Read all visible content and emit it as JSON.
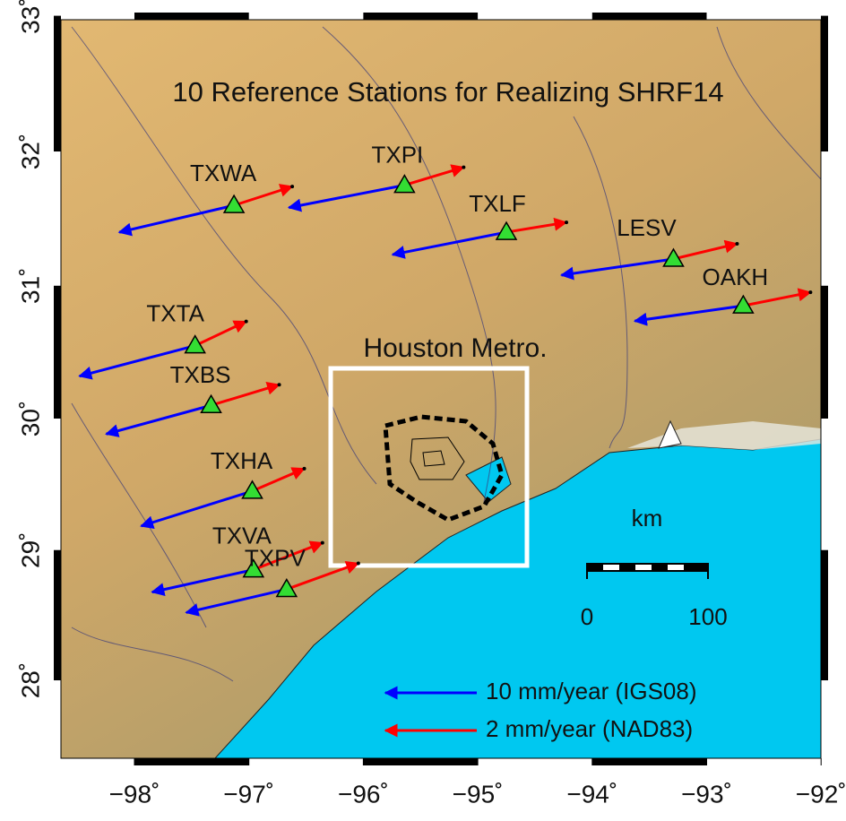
{
  "title": "10 Reference Stations for Realizing SHRF14",
  "stations": [
    {
      "name": "TXWA",
      "lon": -97.13,
      "lat": 31.6
    },
    {
      "name": "TXPI",
      "lon": -95.64,
      "lat": 31.75
    },
    {
      "name": "TXLF",
      "lon": -94.75,
      "lat": 31.4
    },
    {
      "name": "LESV",
      "lon": -93.29,
      "lat": 31.2
    },
    {
      "name": "OAKH",
      "lon": -92.68,
      "lat": 30.85
    },
    {
      "name": "TXTA",
      "lon": -97.47,
      "lat": 30.55
    },
    {
      "name": "TXBS",
      "lon": -97.33,
      "lat": 30.1
    },
    {
      "name": "TXHA",
      "lon": -96.97,
      "lat": 29.45
    },
    {
      "name": "TXVA",
      "lon": -96.96,
      "lat": 28.85
    },
    {
      "name": "TXPV",
      "lon": -96.67,
      "lat": 28.7
    }
  ],
  "box_label": "Houston Metro.",
  "scale": {
    "unit": "km",
    "labels": [
      "0",
      "100"
    ]
  },
  "legend": [
    {
      "label": "10 mm/year (IGS08)",
      "color": "#0000ff"
    },
    {
      "label": "2 mm/year (NAD83)",
      "color": "#ff0000"
    }
  ],
  "lon_ticks": [
    {
      "value": -98,
      "label": "−98˚"
    },
    {
      "value": -97,
      "label": "−97˚"
    },
    {
      "value": -96,
      "label": "−96˚"
    },
    {
      "value": -95,
      "label": "−95˚"
    },
    {
      "value": -94,
      "label": "−94˚"
    },
    {
      "value": -93,
      "label": "−93˚"
    },
    {
      "value": -92,
      "label": "−92˚"
    }
  ],
  "lat_ticks": [
    {
      "value": 28,
      "label": "28˚"
    },
    {
      "value": 29,
      "label": "29˚"
    },
    {
      "value": 30,
      "label": "30˚"
    },
    {
      "value": 31,
      "label": "31˚"
    },
    {
      "value": 32,
      "label": "32˚"
    },
    {
      "value": 33,
      "label": "33˚"
    }
  ]
}
